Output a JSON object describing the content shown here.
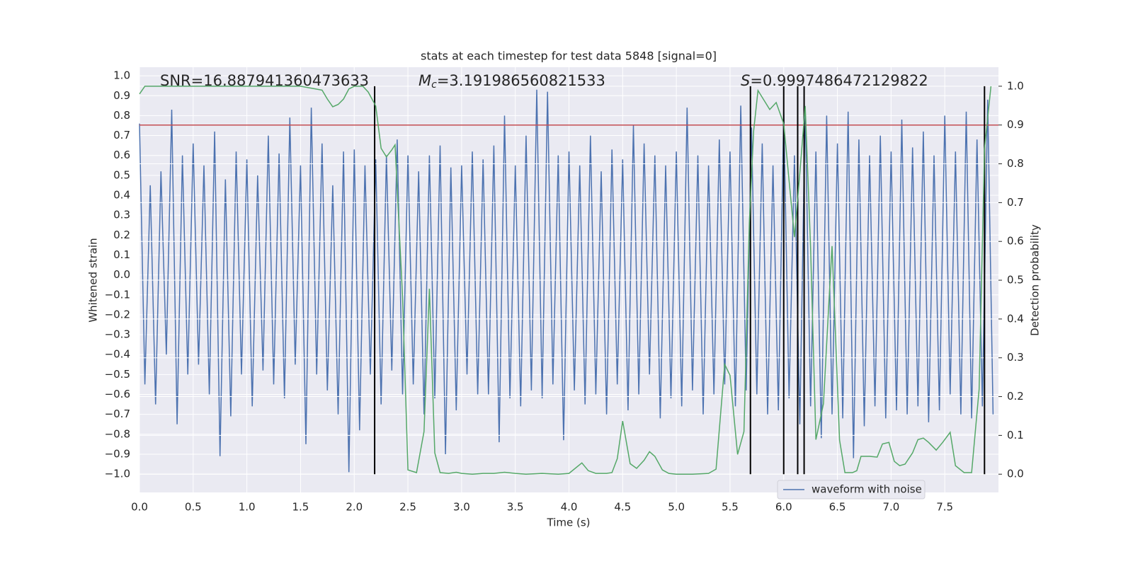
{
  "chart_data": {
    "type": "line",
    "title": "stats at each timestep for test data 5848 [signal=0]",
    "xlabel": "Time (s)",
    "ylabel": "Whitened strain",
    "y2label": "Detection probability",
    "xlim": [
      0,
      8
    ],
    "ylim": [
      -1.092,
      1.043
    ],
    "y2lim": [
      -0.047,
      1.049
    ],
    "xticks": [
      {
        "value": 0,
        "label": "0.0"
      },
      {
        "value": 0.5,
        "label": "0.5"
      },
      {
        "value": 1,
        "label": "1.0"
      },
      {
        "value": 1.5,
        "label": "1.5"
      },
      {
        "value": 2,
        "label": "2.0"
      },
      {
        "value": 2.5,
        "label": "2.5"
      },
      {
        "value": 3,
        "label": "3.0"
      },
      {
        "value": 3.5,
        "label": "3.5"
      },
      {
        "value": 4,
        "label": "4.0"
      },
      {
        "value": 4.5,
        "label": "4.5"
      },
      {
        "value": 5,
        "label": "5.0"
      },
      {
        "value": 5.5,
        "label": "5.5"
      },
      {
        "value": 6,
        "label": "6.0"
      },
      {
        "value": 6.5,
        "label": "6.5"
      },
      {
        "value": 7,
        "label": "7.0"
      },
      {
        "value": 7.5,
        "label": "7.5"
      }
    ],
    "yticks": [
      {
        "value": -1,
        "label": "−1.0"
      },
      {
        "value": -0.9,
        "label": "−0.9"
      },
      {
        "value": -0.8,
        "label": "−0.8"
      },
      {
        "value": -0.7,
        "label": "−0.7"
      },
      {
        "value": -0.6,
        "label": "−0.6"
      },
      {
        "value": -0.5,
        "label": "−0.5"
      },
      {
        "value": -0.4,
        "label": "−0.4"
      },
      {
        "value": -0.3,
        "label": "−0.3"
      },
      {
        "value": -0.2,
        "label": "−0.2"
      },
      {
        "value": -0.1,
        "label": "−0.1"
      },
      {
        "value": 0,
        "label": "0.0"
      },
      {
        "value": 0.1,
        "label": "0.1"
      },
      {
        "value": 0.2,
        "label": "0.2"
      },
      {
        "value": 0.3,
        "label": "0.3"
      },
      {
        "value": 0.4,
        "label": "0.4"
      },
      {
        "value": 0.5,
        "label": "0.5"
      },
      {
        "value": 0.6,
        "label": "0.6"
      },
      {
        "value": 0.7,
        "label": "0.7"
      },
      {
        "value": 0.8,
        "label": "0.8"
      },
      {
        "value": 0.9,
        "label": "0.9"
      },
      {
        "value": 1,
        "label": "1.0"
      }
    ],
    "y2ticks": [
      {
        "value": 0,
        "label": "0.0"
      },
      {
        "value": 0.1,
        "label": "0.1"
      },
      {
        "value": 0.2,
        "label": "0.2"
      },
      {
        "value": 0.3,
        "label": "0.3"
      },
      {
        "value": 0.4,
        "label": "0.4"
      },
      {
        "value": 0.5,
        "label": "0.5"
      },
      {
        "value": 0.6,
        "label": "0.6"
      },
      {
        "value": 0.7,
        "label": "0.7"
      },
      {
        "value": 0.8,
        "label": "0.8"
      },
      {
        "value": 0.9,
        "label": "0.9"
      },
      {
        "value": 1,
        "label": "1.0"
      }
    ],
    "grid": true,
    "legend": "lower right",
    "series": [
      {
        "name": "waveform with noise",
        "color": "#4c72b0",
        "x": [
          0,
          0.05,
          0.1,
          0.15,
          0.2,
          0.25,
          0.3,
          0.35,
          0.4,
          0.45,
          0.5,
          0.55,
          0.6,
          0.65,
          0.7,
          0.75,
          0.8,
          0.85,
          0.9,
          0.95,
          1,
          1.05,
          1.1,
          1.15,
          1.2,
          1.25,
          1.3,
          1.35,
          1.4,
          1.45,
          1.5,
          1.55,
          1.6,
          1.65,
          1.7,
          1.75,
          1.8,
          1.85,
          1.9,
          1.95,
          2,
          2.05,
          2.1,
          2.15,
          2.2,
          2.25,
          2.3,
          2.35,
          2.4,
          2.45,
          2.5,
          2.55,
          2.6,
          2.65,
          2.7,
          2.75,
          2.8,
          2.85,
          2.9,
          2.95,
          3,
          3.05,
          3.1,
          3.15,
          3.2,
          3.25,
          3.3,
          3.35,
          3.4,
          3.45,
          3.5,
          3.55,
          3.6,
          3.65,
          3.7,
          3.75,
          3.8,
          3.85,
          3.9,
          3.95,
          4,
          4.05,
          4.1,
          4.15,
          4.2,
          4.25,
          4.3,
          4.35,
          4.4,
          4.45,
          4.5,
          4.55,
          4.6,
          4.65,
          4.7,
          4.75,
          4.8,
          4.85,
          4.9,
          4.95,
          5,
          5.05,
          5.1,
          5.15,
          5.2,
          5.25,
          5.3,
          5.35,
          5.4,
          5.45,
          5.5,
          5.55,
          5.6,
          5.65,
          5.7,
          5.75,
          5.8,
          5.85,
          5.9,
          5.95,
          6,
          6.05,
          6.1,
          6.15,
          6.2,
          6.25,
          6.3,
          6.35,
          6.4,
          6.45,
          6.5,
          6.55,
          6.6,
          6.65,
          6.7,
          6.75,
          6.8,
          6.85,
          6.9,
          6.95,
          7,
          7.05,
          7.1,
          7.15,
          7.2,
          7.25,
          7.3,
          7.35,
          7.4,
          7.45,
          7.5,
          7.55,
          7.6,
          7.65,
          7.7,
          7.75,
          7.8,
          7.85,
          7.9,
          7.95
        ],
        "values": [
          0.76,
          -0.55,
          0.45,
          -0.65,
          0.52,
          -0.4,
          0.83,
          -0.75,
          0.6,
          -0.5,
          0.66,
          -0.45,
          0.55,
          -0.6,
          0.72,
          -0.91,
          0.48,
          -0.71,
          0.62,
          -0.5,
          0.58,
          -0.66,
          0.5,
          -0.48,
          0.7,
          -0.55,
          0.61,
          -0.62,
          0.79,
          -0.45,
          0.55,
          -0.85,
          0.84,
          -0.5,
          0.66,
          -0.58,
          0.45,
          -0.7,
          0.62,
          -0.99,
          0.63,
          -0.78,
          0.55,
          -0.5,
          0.58,
          -0.65,
          0.6,
          -0.48,
          0.68,
          -0.6,
          0.6,
          -0.55,
          0.52,
          -0.7,
          0.6,
          -0.62,
          0.65,
          -0.9,
          0.54,
          -0.68,
          0.55,
          -0.5,
          0.62,
          -0.6,
          0.58,
          -0.6,
          0.65,
          -0.84,
          0.8,
          -0.62,
          0.55,
          -0.66,
          0.7,
          -0.58,
          0.93,
          -0.62,
          0.92,
          -0.55,
          0.6,
          -0.83,
          0.62,
          -0.58,
          0.55,
          -0.65,
          0.7,
          -0.6,
          0.52,
          -0.7,
          0.63,
          -0.55,
          0.58,
          -0.68,
          0.75,
          -0.6,
          0.66,
          -0.5,
          0.6,
          -0.72,
          0.55,
          -0.62,
          0.62,
          -0.66,
          0.84,
          -0.58,
          0.6,
          -0.7,
          0.55,
          -0.6,
          0.68,
          -0.55,
          0.62,
          -0.66,
          0.85,
          -0.58,
          0.74,
          -0.6,
          0.66,
          -0.7,
          0.55,
          -0.68,
          0.82,
          -0.62,
          0.6,
          -0.75,
          0.84,
          -0.66,
          0.62,
          -0.82,
          0.8,
          -0.7,
          0.66,
          -0.72,
          0.82,
          -0.92,
          0.68,
          -0.76,
          0.6,
          -0.66,
          0.7,
          -0.72,
          0.62,
          -0.68,
          0.78,
          -0.7,
          0.64,
          -0.66,
          0.72,
          -0.74,
          0.6,
          -0.68,
          0.8,
          -0.6,
          0.62,
          -0.7,
          0.82,
          -0.72,
          0.68,
          -0.66,
          0.88,
          -0.7
        ]
      },
      {
        "color": "#55a868",
        "axis": "y2",
        "x": [
          0,
          0.05,
          1.5,
          1.6,
          1.7,
          1.75,
          1.8,
          1.85,
          1.9,
          1.95,
          2,
          2.08,
          2.13,
          2.2,
          2.25,
          2.3,
          2.35,
          2.38,
          2.45,
          2.5,
          2.58,
          2.65,
          2.7,
          2.75,
          2.8,
          2.88,
          2.95,
          3,
          3.1,
          3.2,
          3.3,
          3.4,
          3.5,
          3.6,
          3.75,
          3.9,
          4,
          4.12,
          4.18,
          4.25,
          4.35,
          4.4,
          4.45,
          4.5,
          4.57,
          4.63,
          4.7,
          4.75,
          4.8,
          4.87,
          4.93,
          5,
          5.15,
          5.3,
          5.37,
          5.45,
          5.5,
          5.57,
          5.63,
          5.68,
          5.72,
          5.76,
          5.87,
          5.93,
          6,
          6.05,
          6.1,
          6.15,
          6.2,
          6.25,
          6.3,
          6.37,
          6.42,
          6.45,
          6.52,
          6.57,
          6.64,
          6.68,
          6.72,
          6.8,
          6.87,
          6.92,
          6.98,
          7.03,
          7.08,
          7.13,
          7.2,
          7.25,
          7.3,
          7.35,
          7.42,
          7.48,
          7.55,
          7.6,
          7.68,
          7.75,
          7.82,
          7.87,
          7.93
        ],
        "values": [
          0.98,
          1,
          1,
          0.995,
          0.99,
          0.967,
          0.947,
          0.953,
          0.967,
          0.993,
          1,
          1,
          0.985,
          0.949,
          0.84,
          0.818,
          0.836,
          0.849,
          0.456,
          0.011,
          0.004,
          0.11,
          0.478,
          0.055,
          0.004,
          0.002,
          0.005,
          0.002,
          0,
          0.002,
          0.002,
          0.005,
          0.002,
          0,
          0.002,
          0,
          0.002,
          0.029,
          0.009,
          0.002,
          0.002,
          0.004,
          0.04,
          0.137,
          0.027,
          0.015,
          0.036,
          0.058,
          0.046,
          0.011,
          0.002,
          0,
          0,
          0.002,
          0.013,
          0.283,
          0.255,
          0.051,
          0.11,
          0.648,
          0.885,
          0.989,
          0.94,
          0.958,
          0.903,
          0.757,
          0.611,
          0.776,
          0.949,
          0.584,
          0.089,
          0.182,
          0.438,
          0.588,
          0.088,
          0.004,
          0.004,
          0.009,
          0.046,
          0.046,
          0.044,
          0.078,
          0.082,
          0.033,
          0.022,
          0.026,
          0.055,
          0.089,
          0.093,
          0.082,
          0.062,
          0.082,
          0.108,
          0.022,
          0.004,
          0.004,
          0.219,
          0.839,
          1
        ]
      }
    ],
    "hlines": [
      {
        "value": 0.9,
        "axis": "y2",
        "color": "#c44e52"
      }
    ],
    "vlines": {
      "x": [
        2.19,
        5.69,
        6.0,
        6.13,
        6.19,
        7.87
      ],
      "ymin": 0,
      "ymax": 1,
      "axis": "y2",
      "color": "#000000"
    },
    "annotations": [
      [
        "SNR=16.887941360473633"
      ],
      [
        "M",
        "c",
        "=3.191986560821533"
      ],
      [
        "S",
        "=0.9997486472129822"
      ]
    ]
  }
}
